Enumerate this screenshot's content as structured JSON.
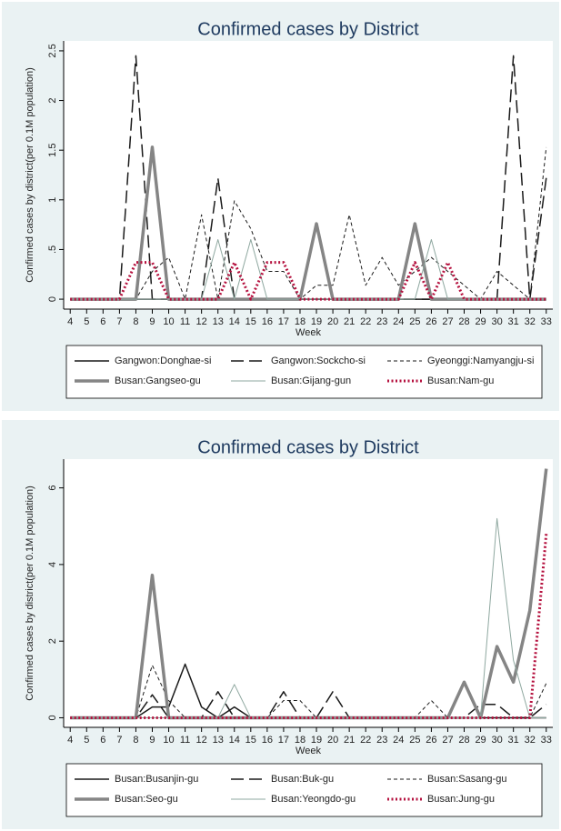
{
  "chart_data": [
    {
      "type": "line",
      "title": "Confirmed cases by District",
      "x_label": "Week",
      "y_label": "Confirmed cases by district(per 0.1M population)",
      "x": [
        4,
        5,
        6,
        7,
        8,
        9,
        10,
        11,
        12,
        13,
        14,
        15,
        16,
        17,
        18,
        19,
        20,
        21,
        22,
        23,
        24,
        25,
        26,
        27,
        28,
        29,
        30,
        31,
        32,
        33
      ],
      "xlim": [
        3.6,
        33.4
      ],
      "xticks": [
        4,
        5,
        6,
        7,
        8,
        9,
        10,
        11,
        12,
        13,
        14,
        15,
        16,
        17,
        18,
        19,
        20,
        21,
        22,
        23,
        24,
        25,
        26,
        27,
        28,
        29,
        30,
        31,
        32,
        33
      ],
      "ylim": [
        -0.1,
        2.6
      ],
      "yticks": [
        0,
        {
          "value": 0.5,
          "label": ".5"
        },
        1,
        1.5,
        2,
        2.5
      ],
      "grid": false,
      "legend": "bottom",
      "series": [
        {
          "name": "Gangwon:Donghae-si",
          "color": "#1a1a1a",
          "style": "solid",
          "values": [
            0,
            0,
            0,
            0,
            0,
            0,
            0,
            0,
            0,
            0,
            0,
            0,
            0,
            0,
            0,
            0,
            0,
            0,
            0,
            0,
            0,
            0,
            0,
            0,
            0,
            0,
            0,
            0,
            0,
            0
          ]
        },
        {
          "name": "Gangwon:Sockcho-si",
          "color": "#1a1a1a",
          "style": "long-dash",
          "values": [
            0,
            0,
            0,
            0,
            2.45,
            0,
            0,
            0,
            0,
            1.22,
            0,
            0,
            0,
            0,
            0,
            0,
            0,
            0,
            0,
            0,
            0,
            0,
            0,
            0,
            0,
            0,
            0,
            2.45,
            0,
            1.22
          ]
        },
        {
          "name": "Gyeonggi:Namyangju-si",
          "color": "#1a1a1a",
          "style": "short-dash",
          "values": [
            0,
            0,
            0,
            0,
            0,
            0.28,
            0.42,
            0,
            0.85,
            0,
            0.99,
            0.71,
            0.28,
            0.28,
            0,
            0.14,
            0.14,
            0.85,
            0.14,
            0.42,
            0.14,
            0.28,
            0.42,
            0.28,
            0.14,
            0,
            0.28,
            0.14,
            0,
            1.53
          ]
        },
        {
          "name": "Busan:Gangseo-gu",
          "color": "#858585",
          "style": "thick",
          "values": [
            0,
            0,
            0,
            0,
            0,
            1.53,
            0,
            0,
            0,
            0,
            0,
            0,
            0,
            0,
            0,
            0.76,
            0,
            0,
            0,
            0,
            0,
            0.76,
            0,
            0,
            0,
            0,
            0,
            0,
            0,
            0
          ]
        },
        {
          "name": "Busan:Gijang-gun",
          "color": "#8fa8a0",
          "style": "thin",
          "values": [
            0,
            0,
            0,
            0,
            0,
            0,
            0,
            0,
            0,
            0.6,
            0,
            0.6,
            0,
            0,
            0,
            0,
            0,
            0,
            0,
            0,
            0,
            0,
            0.6,
            0,
            0,
            0,
            0,
            0,
            0,
            0
          ]
        },
        {
          "name": "Busan:Nam-gu",
          "color": "#b5123f",
          "style": "dotted",
          "values": [
            0,
            0,
            0,
            0,
            0.37,
            0.37,
            0,
            0,
            0,
            0,
            0.37,
            0,
            0.37,
            0.37,
            0,
            0,
            0,
            0,
            0,
            0,
            0,
            0.37,
            0,
            0.37,
            0,
            0,
            0,
            0,
            0,
            0
          ]
        }
      ]
    },
    {
      "type": "line",
      "title": "Confirmed cases by District",
      "x_label": "Week",
      "y_label": "Confirmed cases by district(per 0.1M population)",
      "x": [
        4,
        5,
        6,
        7,
        8,
        9,
        10,
        11,
        12,
        13,
        14,
        15,
        16,
        17,
        18,
        19,
        20,
        21,
        22,
        23,
        24,
        25,
        26,
        27,
        28,
        29,
        30,
        31,
        32,
        33
      ],
      "xlim": [
        3.6,
        33.4
      ],
      "xticks": [
        4,
        5,
        6,
        7,
        8,
        9,
        10,
        11,
        12,
        13,
        14,
        15,
        16,
        17,
        18,
        19,
        20,
        21,
        22,
        23,
        24,
        25,
        26,
        27,
        28,
        29,
        30,
        31,
        32,
        33
      ],
      "ylim": [
        -0.25,
        6.75
      ],
      "yticks": [
        0,
        2,
        4,
        6
      ],
      "grid": false,
      "legend": "bottom",
      "series": [
        {
          "name": "Busan:Busanjin-gu",
          "color": "#1a1a1a",
          "style": "solid",
          "values": [
            0,
            0,
            0,
            0,
            0,
            0.28,
            0.28,
            1.4,
            0.28,
            0,
            0.28,
            0,
            0,
            0,
            0,
            0,
            0,
            0,
            0,
            0,
            0,
            0,
            0,
            0,
            0,
            0,
            0,
            0,
            0,
            0
          ]
        },
        {
          "name": "Busan:Buk-gu",
          "color": "#1a1a1a",
          "style": "long-dash",
          "values": [
            0,
            0,
            0,
            0,
            0,
            0.6,
            0,
            0,
            0,
            0.68,
            0,
            0,
            0,
            0.68,
            0,
            0,
            0.68,
            0,
            0,
            0,
            0,
            0,
            0,
            0,
            0,
            0.35,
            0.35,
            0,
            0,
            0.35
          ]
        },
        {
          "name": "Busan:Sasang-gu",
          "color": "#1a1a1a",
          "style": "short-dash",
          "values": [
            0,
            0,
            0,
            0,
            0,
            1.37,
            0.45,
            0,
            0,
            0,
            0,
            0,
            0,
            0.45,
            0.45,
            0,
            0,
            0,
            0,
            0,
            0,
            0,
            0.45,
            0,
            0,
            0,
            0,
            0,
            0,
            0.9
          ]
        },
        {
          "name": "Busan:Seo-gu",
          "color": "#858585",
          "style": "thick",
          "values": [
            0,
            0,
            0,
            0,
            0,
            3.72,
            0,
            0,
            0,
            0,
            0,
            0,
            0,
            0,
            0,
            0,
            0,
            0,
            0,
            0,
            0,
            0,
            0,
            0,
            0.93,
            0,
            1.86,
            0.93,
            2.8,
            6.5
          ]
        },
        {
          "name": "Busan:Yeongdo-gu",
          "color": "#8fa8a0",
          "style": "thin",
          "values": [
            0,
            0,
            0,
            0,
            0,
            0,
            0,
            0,
            0,
            0,
            0.87,
            0,
            0,
            0,
            0,
            0,
            0,
            0,
            0,
            0,
            0,
            0,
            0,
            0,
            0,
            0,
            5.2,
            1.5,
            0,
            0
          ]
        },
        {
          "name": "Busan:Jung-gu",
          "color": "#b5123f",
          "style": "dotted",
          "values": [
            0,
            0,
            0,
            0,
            0,
            0,
            0,
            0,
            0,
            0,
            0,
            0,
            0,
            0,
            0,
            0,
            0,
            0,
            0,
            0,
            0,
            0,
            0,
            0,
            0,
            0,
            0,
            0,
            0,
            4.8
          ]
        }
      ]
    }
  ]
}
